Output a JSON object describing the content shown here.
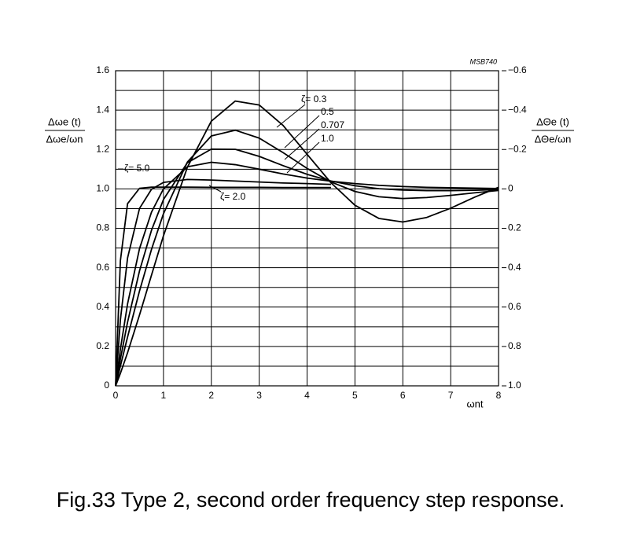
{
  "chart_data": {
    "type": "line",
    "code": "MSB740",
    "y_label": {
      "numerator": "Δωe (t)",
      "denominator": "Δωe/ωn"
    },
    "y2_label": {
      "numerator": "ΔΘe (t)",
      "denominator": "ΔΘe/ωn"
    },
    "x_label": "ωnt",
    "caption": "Fig.33  Type 2, second order frequency step response.",
    "x": [
      0,
      0.1,
      0.25,
      0.5,
      0.75,
      1,
      1.5,
      2,
      2.5,
      3,
      3.5,
      4,
      4.5,
      5,
      5.5,
      6,
      6.5,
      7,
      7.5,
      8
    ],
    "series": [
      {
        "name": "ζ= 0.3",
        "color": "#000000",
        "values": [
          0,
          0.063,
          0.168,
          0.36,
          0.562,
          0.762,
          1.11,
          1.344,
          1.446,
          1.426,
          1.322,
          1.176,
          1.031,
          0.917,
          0.85,
          0.832,
          0.855,
          0.902,
          0.958,
          1.008
        ]
      },
      {
        "name": "0.5",
        "color": "#000000",
        "values": [
          0,
          0.1,
          0.248,
          0.482,
          0.693,
          0.874,
          1.136,
          1.269,
          1.298,
          1.258,
          1.184,
          1.104,
          1.035,
          0.987,
          0.96,
          0.951,
          0.956,
          0.967,
          0.98,
          0.992
        ]
      },
      {
        "name": "0.707",
        "color": "#000000",
        "values": [
          0,
          0.136,
          0.323,
          0.584,
          0.79,
          0.946,
          1.133,
          1.202,
          1.201,
          1.165,
          1.118,
          1.074,
          1.04,
          1.016,
          1.001,
          0.994,
          0.991,
          0.991,
          0.993,
          0.996
        ]
      },
      {
        "name": "1.0",
        "color": "#000000",
        "values": [
          0,
          0.186,
          0.416,
          0.697,
          0.882,
          1,
          1.112,
          1.135,
          1.123,
          1.1,
          1.076,
          1.055,
          1.039,
          1.027,
          1.018,
          1.012,
          1.008,
          1.006,
          1.004,
          1.002
        ]
      },
      {
        "name": "ζ= 2.0",
        "color": "#000000",
        "values": [
          0,
          0.334,
          0.649,
          0.901,
          0.998,
          1.033,
          1.048,
          1.045,
          1.04,
          1.035,
          1.03,
          1.027,
          1.023,
          null,
          null,
          null,
          null,
          null,
          null,
          null
        ]
      },
      {
        "name": "ζ= 5.0",
        "color": "#000000",
        "values": [
          0,
          0.635,
          0.925,
          1.003,
          1.009,
          1.009,
          1.009,
          1.008,
          1.008,
          1.008,
          1.007,
          1.007,
          1.007,
          null,
          null,
          null,
          null,
          null,
          null,
          null
        ]
      }
    ],
    "xlim": [
      0,
      8
    ],
    "xticks": [
      0,
      1,
      2,
      3,
      4,
      5,
      6,
      7,
      8
    ],
    "ylim": [
      0,
      1.6
    ],
    "yticks": [
      0,
      0.2,
      0.4,
      0.6,
      0.8,
      {
        "value": 1,
        "label": "1.0"
      },
      1.2,
      1.4,
      1.6
    ],
    "ygrid": [
      0.1,
      0.3,
      0.5,
      0.7,
      0.9,
      1.1,
      1.3,
      1.5
    ],
    "y2lim": [
      1,
      -0.6
    ],
    "y2ticks": [
      {
        "value": 1,
        "label": "1.0"
      },
      0.8,
      0.6,
      0.4,
      0.2,
      0,
      {
        "value": -0.2,
        "label": "−0.2"
      },
      {
        "value": -0.4,
        "label": "−0.4"
      },
      {
        "value": -0.6,
        "label": "−0.6"
      }
    ],
    "grid": true
  }
}
